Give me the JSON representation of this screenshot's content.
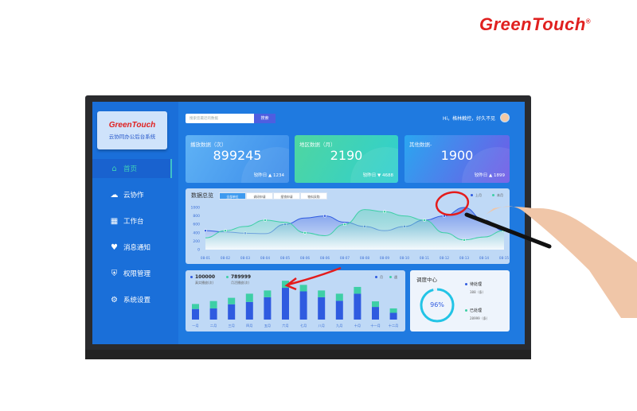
{
  "brand": "GreenTouch",
  "app": {
    "logo_text": "GreenTouch",
    "system_name": "云协同办公后台系统"
  },
  "sidebar": {
    "items": [
      {
        "label": "首页",
        "icon": "home-icon",
        "active": true
      },
      {
        "label": "云协作",
        "icon": "cloud-icon"
      },
      {
        "label": "工作台",
        "icon": "grid-icon"
      },
      {
        "label": "消息通知",
        "icon": "heart-icon"
      },
      {
        "label": "权限管理",
        "icon": "shield-icon"
      },
      {
        "label": "系统设置",
        "icon": "settings-icon"
      }
    ]
  },
  "header": {
    "search_placeholder": "搜索您最近的数据",
    "search_button": "搜索",
    "greeting": "Hi，格林触控，好久不见"
  },
  "cards": [
    {
      "title": "播放数据（次）",
      "value": "899245",
      "footer": "较昨日 ▲ 1234"
    },
    {
      "title": "地区数据（月）",
      "value": "2190",
      "footer": "较昨日 ▼ 4688"
    },
    {
      "title": "其他数据-",
      "value": "1900",
      "footer": "较昨日 ▲ 1899"
    }
  ],
  "overview": {
    "title": "数据总览",
    "tabs": [
      "全部单位",
      "调研申请",
      "报销申请",
      "物料采购"
    ],
    "active_tab": 0
  },
  "chart_data": [
    {
      "type": "area",
      "x": [
        "08-01",
        "08-02",
        "08-03",
        "08-04",
        "08-05",
        "08-06",
        "08-06",
        "08-07",
        "08-08",
        "08-09",
        "08-10",
        "08-11",
        "08-12",
        "08-13",
        "08-14",
        "08-15"
      ],
      "yticks": [
        0,
        200,
        400,
        600,
        800,
        1000
      ],
      "ylim": [
        0,
        1000
      ],
      "legend_position": "top-right",
      "series": [
        {
          "name": "上月",
          "color": "#2f5be0",
          "values": [
            450,
            420,
            390,
            380,
            600,
            750,
            800,
            650,
            550,
            450,
            550,
            700,
            800,
            1000,
            700,
            450
          ]
        },
        {
          "name": "本月",
          "color": "#3ecfa6",
          "values": [
            280,
            450,
            550,
            700,
            650,
            400,
            330,
            600,
            950,
            900,
            800,
            700,
            400,
            230,
            300,
            450
          ]
        }
      ]
    },
    {
      "type": "bar",
      "stacked": true,
      "categories": [
        "一月",
        "二月",
        "三月",
        "四月",
        "五月",
        "六月",
        "七月",
        "八月",
        "九月",
        "十月",
        "十一月",
        "十二月"
      ],
      "legend_position": "top-right",
      "series": [
        {
          "name": "月",
          "color": "#2f5be0",
          "values": [
            36,
            38,
            52,
            60,
            76,
            108,
            96,
            76,
            64,
            88,
            43,
            23
          ]
        },
        {
          "name": "週",
          "color": "#3ecfa6",
          "values": [
            17,
            25,
            22,
            28,
            23,
            24,
            22,
            23,
            24,
            23,
            19,
            15
          ]
        }
      ],
      "stats": [
        {
          "value": "100000",
          "label": "真实播放(次)",
          "color": "#2f5be0"
        },
        {
          "value": "789999",
          "label": "月活播放(次)",
          "color": "#3ecfa6"
        }
      ]
    }
  ],
  "dispatch": {
    "title": "调度中心",
    "percent": 96,
    "percent_label": "96%",
    "pending_label": "待处理",
    "pending_value": "388（条）",
    "done_label": "已处理",
    "done_value": "28999（条）"
  }
}
